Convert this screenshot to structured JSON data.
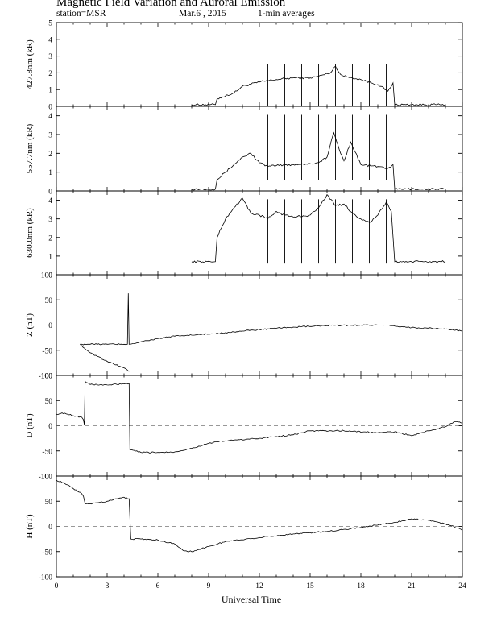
{
  "header": {
    "title": "Magnetic Field Variation and Auroral Emission",
    "station": "station=MSR",
    "date": "Mar.6  , 2015",
    "averaging": "1-min averages"
  },
  "chart_data": [
    {
      "type": "line",
      "panel": "427.8nm",
      "ylabel": "427.8nm (kR)",
      "ylim": [
        0,
        5
      ],
      "yticks": [
        "0",
        "1",
        "2",
        "3",
        "4",
        "5"
      ],
      "xlim": [
        0,
        24
      ],
      "series": [
        {
          "x": [
            8.0,
            9.4,
            9.5,
            10.5,
            11.0,
            12.0,
            13.0,
            14.0,
            15.0,
            15.5,
            16.2,
            16.5,
            16.8,
            17.0,
            17.5,
            18.0,
            19.0,
            19.6,
            19.9,
            20.0,
            21.0,
            23.0
          ],
          "y": [
            0.1,
            0.1,
            0.45,
            0.8,
            1.2,
            1.45,
            1.6,
            1.7,
            1.7,
            1.8,
            2.0,
            2.4,
            1.9,
            1.8,
            1.7,
            1.6,
            1.3,
            0.9,
            1.4,
            0.1,
            0.1,
            0.1
          ]
        }
      ],
      "markers": [
        10.5,
        11.5,
        12.5,
        13.5,
        14.5,
        15.5,
        16.5,
        17.5,
        18.5,
        19.5
      ]
    },
    {
      "type": "line",
      "panel": "557.7nm",
      "ylabel": "557.7nm (kR)",
      "ylim": [
        0,
        4.5
      ],
      "yticks": [
        "0",
        "1",
        "2",
        "3",
        "4"
      ],
      "xlim": [
        0,
        24
      ],
      "series": [
        {
          "x": [
            8.0,
            9.4,
            9.5,
            10.0,
            10.5,
            11.0,
            11.5,
            12.0,
            12.5,
            13.0,
            14.0,
            15.0,
            15.5,
            16.0,
            16.4,
            16.8,
            17.0,
            17.4,
            18.0,
            19.0,
            19.6,
            19.9,
            20.0,
            21.0,
            23.0
          ],
          "y": [
            0.1,
            0.1,
            0.6,
            1.0,
            1.4,
            1.8,
            2.0,
            1.5,
            1.3,
            1.35,
            1.4,
            1.45,
            1.5,
            1.8,
            3.1,
            2.0,
            1.6,
            2.6,
            1.4,
            1.3,
            1.2,
            1.4,
            0.1,
            0.1,
            0.1
          ]
        }
      ],
      "markers": [
        10.5,
        11.5,
        12.5,
        13.5,
        14.5,
        15.5,
        16.5,
        17.5,
        18.5,
        19.5
      ]
    },
    {
      "type": "line",
      "panel": "630.0nm",
      "ylabel": "630.0nm (kR)",
      "ylim": [
        0,
        4.5
      ],
      "yticks": [
        "0",
        "1",
        "2",
        "3",
        "4"
      ],
      "xlim": [
        0,
        24
      ],
      "series": [
        {
          "x": [
            8.0,
            9.4,
            9.5,
            10.0,
            10.5,
            11.0,
            11.5,
            12.0,
            12.5,
            13.0,
            13.5,
            14.0,
            15.0,
            15.5,
            16.0,
            16.5,
            17.0,
            17.5,
            18.0,
            18.5,
            19.0,
            19.5,
            19.8,
            20.0,
            21.0,
            23.0
          ],
          "y": [
            0.7,
            0.7,
            2.0,
            3.0,
            3.6,
            4.1,
            3.3,
            3.2,
            3.0,
            3.4,
            3.2,
            3.1,
            3.2,
            3.6,
            4.3,
            3.7,
            3.8,
            3.3,
            3.0,
            2.8,
            3.2,
            3.9,
            3.4,
            0.7,
            0.7,
            0.7
          ]
        }
      ],
      "markers": [
        10.5,
        11.5,
        12.5,
        13.5,
        14.5,
        15.5,
        16.5,
        17.5,
        18.5,
        19.5
      ]
    },
    {
      "type": "line",
      "panel": "Z",
      "ylabel": "Z (nT)",
      "ylim": [
        -100,
        100
      ],
      "yticks": [
        "-100",
        "-50",
        "0",
        "50",
        "100"
      ],
      "xlim": [
        0,
        24
      ],
      "zero_line": true,
      "series": [
        {
          "x": [
            1.4,
            1.45,
            1.5,
            2.0,
            3.0,
            4.0,
            4.2,
            4.25,
            4.3,
            4.5,
            5.0,
            6.0,
            7.0,
            8.0,
            9.0,
            10.0,
            11.0,
            12.0,
            14.0,
            16.0,
            18.0,
            19.0,
            20.0,
            21.0,
            22.0,
            23.0,
            24.0
          ],
          "y": [
            -38,
            -38,
            -38,
            -38,
            -38,
            -38,
            -38,
            63,
            -38,
            -37,
            -33,
            -27,
            -22,
            -20,
            -18,
            -15,
            -12,
            -9,
            -4,
            -1,
            0,
            0,
            -2,
            -5,
            -6,
            -8,
            -12
          ]
        },
        {
          "x": [
            1.4,
            1.5,
            2.0,
            3.0,
            4.0,
            4.3
          ],
          "y": [
            -38,
            -41,
            -55,
            -72,
            -85,
            -92
          ]
        }
      ]
    },
    {
      "type": "line",
      "panel": "D",
      "ylabel": "D (nT)",
      "ylim": [
        -100,
        100
      ],
      "yticks": [
        "-100",
        "-50",
        "0",
        "50",
        "100"
      ],
      "xlim": [
        0,
        24
      ],
      "zero_line": true,
      "series": [
        {
          "x": [
            0.0,
            0.5,
            1.0,
            1.5,
            1.6,
            1.65,
            1.7,
            2.0,
            3.0,
            4.0,
            4.3,
            4.35,
            5.0,
            6.0,
            7.0,
            8.0,
            9.0,
            10.0,
            12.0,
            14.0,
            15.0,
            17.0,
            19.0,
            20.0,
            21.0,
            22.0,
            23.0,
            23.5,
            24.0
          ],
          "y": [
            23,
            25,
            20,
            17,
            12,
            2,
            88,
            82,
            81,
            83,
            84,
            -48,
            -53,
            -53,
            -52,
            -45,
            -35,
            -30,
            -25,
            -18,
            -10,
            -10,
            -14,
            -12,
            -20,
            -10,
            -2,
            8,
            6
          ]
        }
      ]
    },
    {
      "type": "line",
      "panel": "H",
      "ylabel": "H (nT)",
      "ylim": [
        -100,
        100
      ],
      "yticks": [
        "-100",
        "-50",
        "0",
        "50",
        "100"
      ],
      "xlim": [
        0,
        24
      ],
      "xticks": [
        "0",
        "3",
        "6",
        "9",
        "12",
        "15",
        "18",
        "21",
        "24"
      ],
      "xlabel": "Universal Time",
      "zero_line": true,
      "series": [
        {
          "x": [
            0.0,
            0.5,
            1.0,
            1.5,
            1.6,
            1.7,
            2.0,
            3.0,
            3.5,
            4.0,
            4.3,
            4.4,
            5.0,
            6.0,
            7.0,
            7.5,
            8.0,
            9.0,
            10.0,
            12.0,
            14.0,
            16.0,
            18.0,
            20.0,
            21.0,
            22.0,
            23.0,
            23.5,
            24.0
          ],
          "y": [
            92,
            85,
            75,
            65,
            60,
            45,
            45,
            50,
            55,
            58,
            55,
            -25,
            -25,
            -27,
            -35,
            -48,
            -50,
            -40,
            -30,
            -22,
            -15,
            -10,
            -2,
            8,
            15,
            12,
            5,
            0,
            -8
          ]
        }
      ]
    }
  ]
}
